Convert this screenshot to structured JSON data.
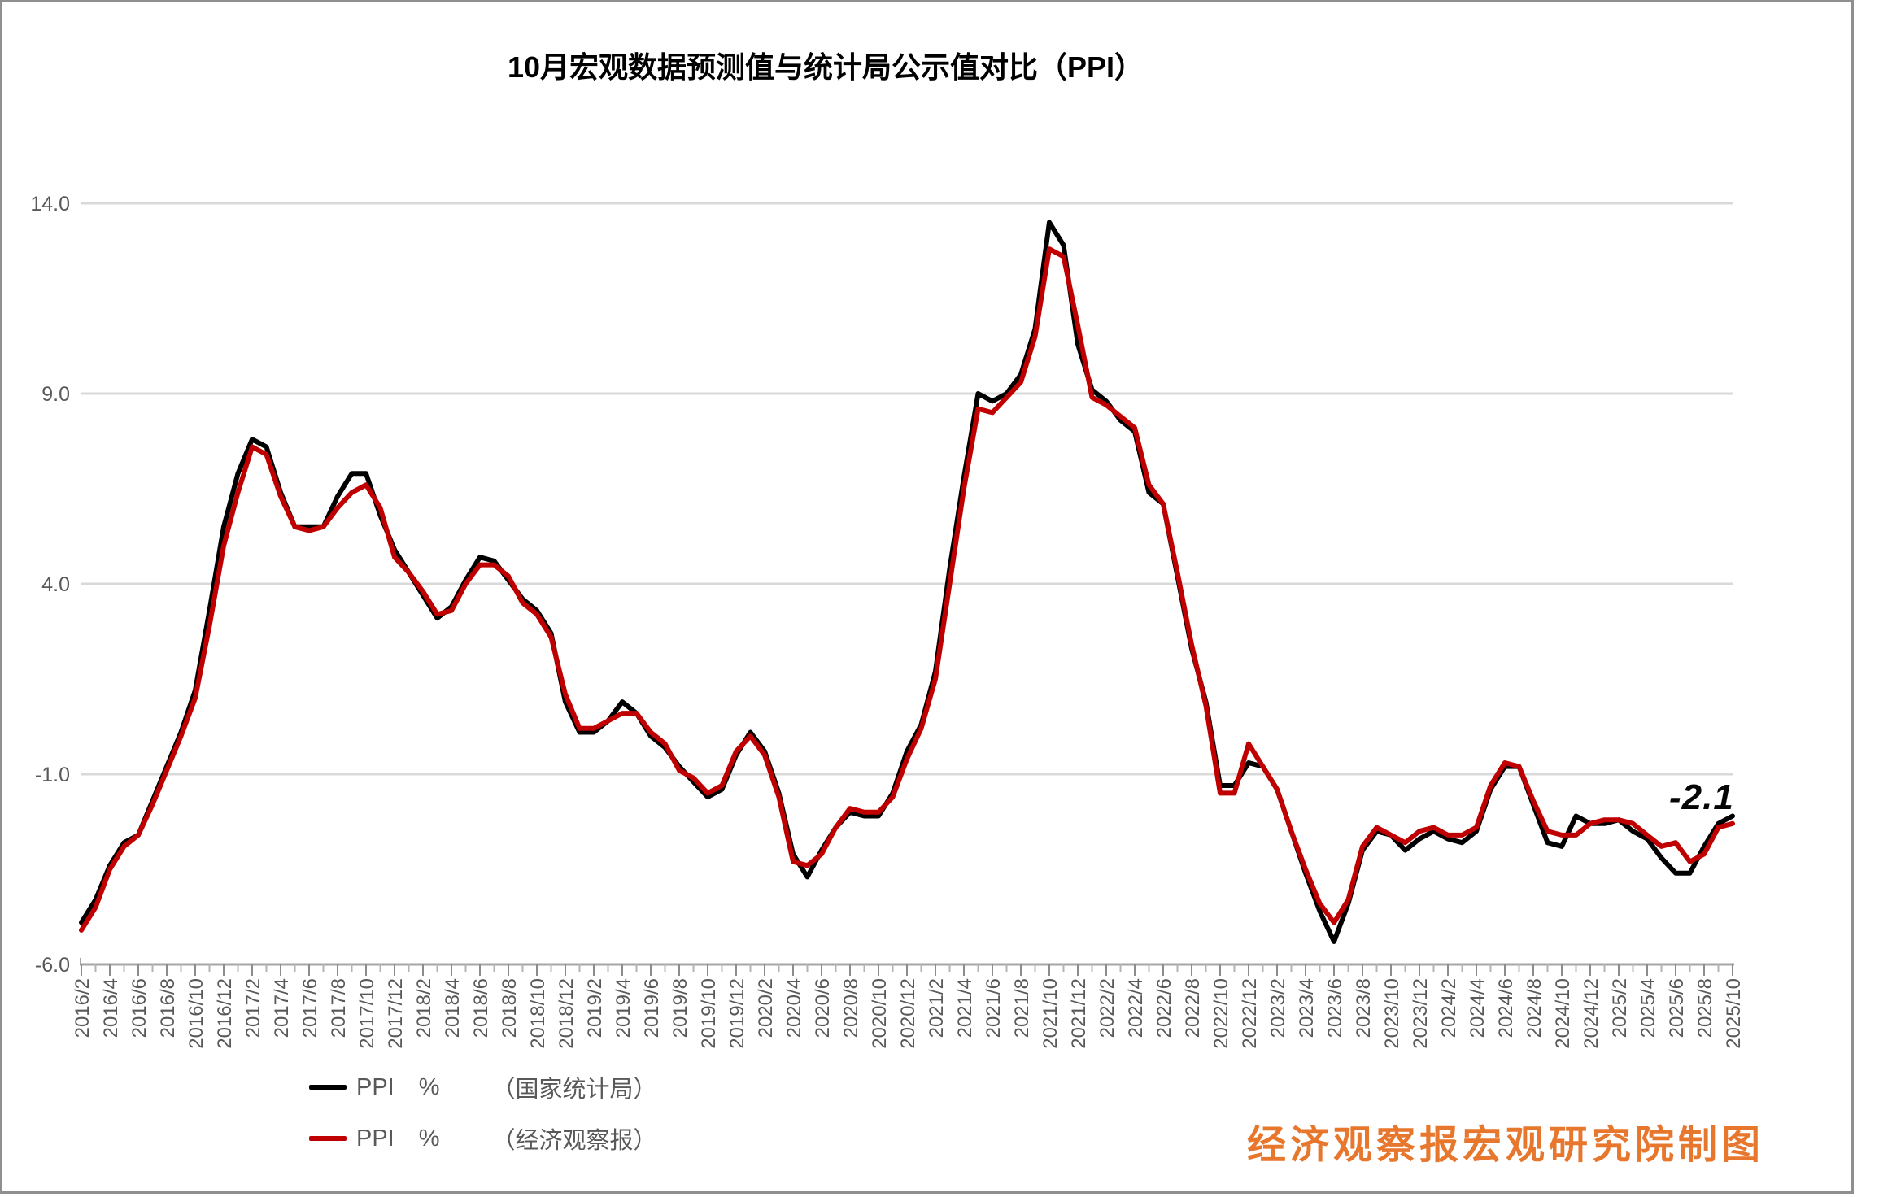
{
  "title": {
    "text": "10月宏观数据预测值与统计局公示值对比（PPI）"
  },
  "annotation": {
    "text": "-2.1"
  },
  "watermark": {
    "text": "经济观察报宏观研究院制图",
    "color": "#E8772E"
  },
  "colors": {
    "series_official": "#000000",
    "series_forecast": "#C00000",
    "gridline": "#D9D9D9",
    "axis": "#A6A6A6",
    "tick_major": "#8C8C8C",
    "tick_minor": "#B3B3B3",
    "axis_label": "#595959",
    "frame": "#8F8F8F"
  },
  "legend": {
    "items": [
      {
        "series_label": "PPI",
        "unit": "%",
        "source": "（国家统计局）",
        "color": "#000000"
      },
      {
        "series_label": "PPI",
        "unit": "%",
        "source": "（经济观察报）",
        "color": "#C00000"
      }
    ]
  },
  "chart_data": {
    "type": "line",
    "title": "10月宏观数据预测值与统计局公示值对比（PPI）",
    "xlabel": "",
    "ylabel": "",
    "ylim": [
      -6.0,
      14.0
    ],
    "grid": true,
    "legend_position": "bottom-left",
    "yticks": [
      {
        "value": 14.0,
        "label": "14.0"
      },
      {
        "value": 9.0,
        "label": "9.0"
      },
      {
        "value": 4.0,
        "label": "4.0"
      },
      {
        "value": -1.0,
        "label": "-1.0"
      },
      {
        "value": -6.0,
        "label": "-6.0"
      }
    ],
    "x_labels": [
      "2016/2",
      "2016/4",
      "2016/6",
      "2016/8",
      "2016/10",
      "2016/12",
      "2017/2",
      "2017/4",
      "2017/6",
      "2017/8",
      "2017/10",
      "2017/12",
      "2018/2",
      "2018/4",
      "2018/6",
      "2018/8",
      "2018/10",
      "2018/12",
      "2019/2",
      "2019/4",
      "2019/6",
      "2019/8",
      "2019/10",
      "2019/12",
      "2020/2",
      "2020/4",
      "2020/6",
      "2020/8",
      "2020/10",
      "2020/12",
      "2021/2",
      "2021/4",
      "2021/6",
      "2021/8",
      "2021/10",
      "2021/12",
      "2022/2",
      "2022/4",
      "2022/6",
      "2022/8",
      "2022/10",
      "2022/12",
      "2023/2",
      "2023/4",
      "2023/6",
      "2023/8",
      "2023/10",
      "2023/12",
      "2024/2",
      "2024/4",
      "2024/6",
      "2024/8",
      "2024/10",
      "2024/12",
      "2025/2",
      "2025/4",
      "2025/6",
      "2025/8",
      "2025/10"
    ],
    "points_per_label": 2,
    "series": [
      {
        "name": "PPI %（国家统计局）",
        "color": "#000000",
        "values": [
          -4.9,
          -4.3,
          -3.4,
          -2.8,
          -2.6,
          -1.7,
          -0.8,
          0.1,
          1.2,
          3.3,
          5.5,
          6.9,
          7.8,
          7.6,
          6.4,
          5.5,
          5.5,
          5.5,
          6.3,
          6.9,
          6.9,
          5.8,
          4.9,
          4.3,
          3.7,
          3.1,
          3.4,
          4.1,
          4.7,
          4.6,
          4.1,
          3.6,
          3.3,
          2.7,
          0.9,
          0.1,
          0.1,
          0.4,
          0.9,
          0.6,
          0.0,
          -0.3,
          -0.8,
          -1.2,
          -1.6,
          -1.4,
          -0.5,
          0.1,
          -0.4,
          -1.5,
          -3.1,
          -3.7,
          -3.0,
          -2.4,
          -2.0,
          -2.1,
          -2.1,
          -1.5,
          -0.4,
          0.3,
          1.7,
          4.4,
          6.8,
          9.0,
          8.8,
          9.0,
          9.5,
          10.7,
          13.5,
          12.9,
          10.3,
          9.1,
          8.8,
          8.3,
          8.0,
          6.4,
          6.1,
          4.2,
          2.3,
          0.9,
          -1.3,
          -1.3,
          -0.7,
          -0.8,
          -1.4,
          -2.5,
          -3.6,
          -4.6,
          -5.4,
          -4.4,
          -3.0,
          -2.5,
          -2.6,
          -3.0,
          -2.7,
          -2.5,
          -2.7,
          -2.8,
          -2.5,
          -1.4,
          -0.8,
          -0.8,
          -1.8,
          -2.8,
          -2.9,
          -2.1,
          -2.3,
          -2.3,
          -2.2,
          -2.5,
          -2.7,
          -3.2,
          -3.6,
          -3.6,
          -2.9,
          -2.3,
          -2.1
        ]
      },
      {
        "name": "PPI %（经济观察报）",
        "color": "#C00000",
        "values": [
          -5.1,
          -4.5,
          -3.5,
          -2.9,
          -2.6,
          -1.8,
          -0.9,
          0.0,
          1.0,
          2.9,
          5.0,
          6.4,
          7.6,
          7.4,
          6.3,
          5.5,
          5.4,
          5.5,
          6.0,
          6.4,
          6.6,
          6.0,
          4.7,
          4.3,
          3.8,
          3.2,
          3.3,
          4.0,
          4.5,
          4.5,
          4.2,
          3.5,
          3.2,
          2.6,
          1.1,
          0.2,
          0.2,
          0.4,
          0.6,
          0.6,
          0.1,
          -0.2,
          -0.9,
          -1.1,
          -1.5,
          -1.3,
          -0.4,
          0.0,
          -0.5,
          -1.6,
          -3.3,
          -3.4,
          -3.1,
          -2.4,
          -1.9,
          -2.0,
          -2.0,
          -1.6,
          -0.6,
          0.2,
          1.5,
          4.0,
          6.5,
          8.6,
          8.5,
          8.9,
          9.3,
          10.5,
          12.8,
          12.6,
          10.8,
          8.9,
          8.7,
          8.4,
          8.1,
          6.6,
          6.1,
          4.3,
          2.4,
          0.8,
          -1.5,
          -1.5,
          -0.2,
          -0.8,
          -1.4,
          -2.5,
          -3.5,
          -4.4,
          -4.9,
          -4.3,
          -2.9,
          -2.4,
          -2.6,
          -2.8,
          -2.5,
          -2.4,
          -2.6,
          -2.6,
          -2.4,
          -1.3,
          -0.7,
          -0.8,
          -1.7,
          -2.5,
          -2.6,
          -2.6,
          -2.3,
          -2.2,
          -2.2,
          -2.3,
          -2.6,
          -2.9,
          -2.8,
          -3.3,
          -3.1,
          -2.4,
          -2.3
        ]
      }
    ],
    "end_label": {
      "series": "PPI %（国家统计局）",
      "x": "2025/10",
      "value": -2.1,
      "text": "-2.1"
    }
  }
}
